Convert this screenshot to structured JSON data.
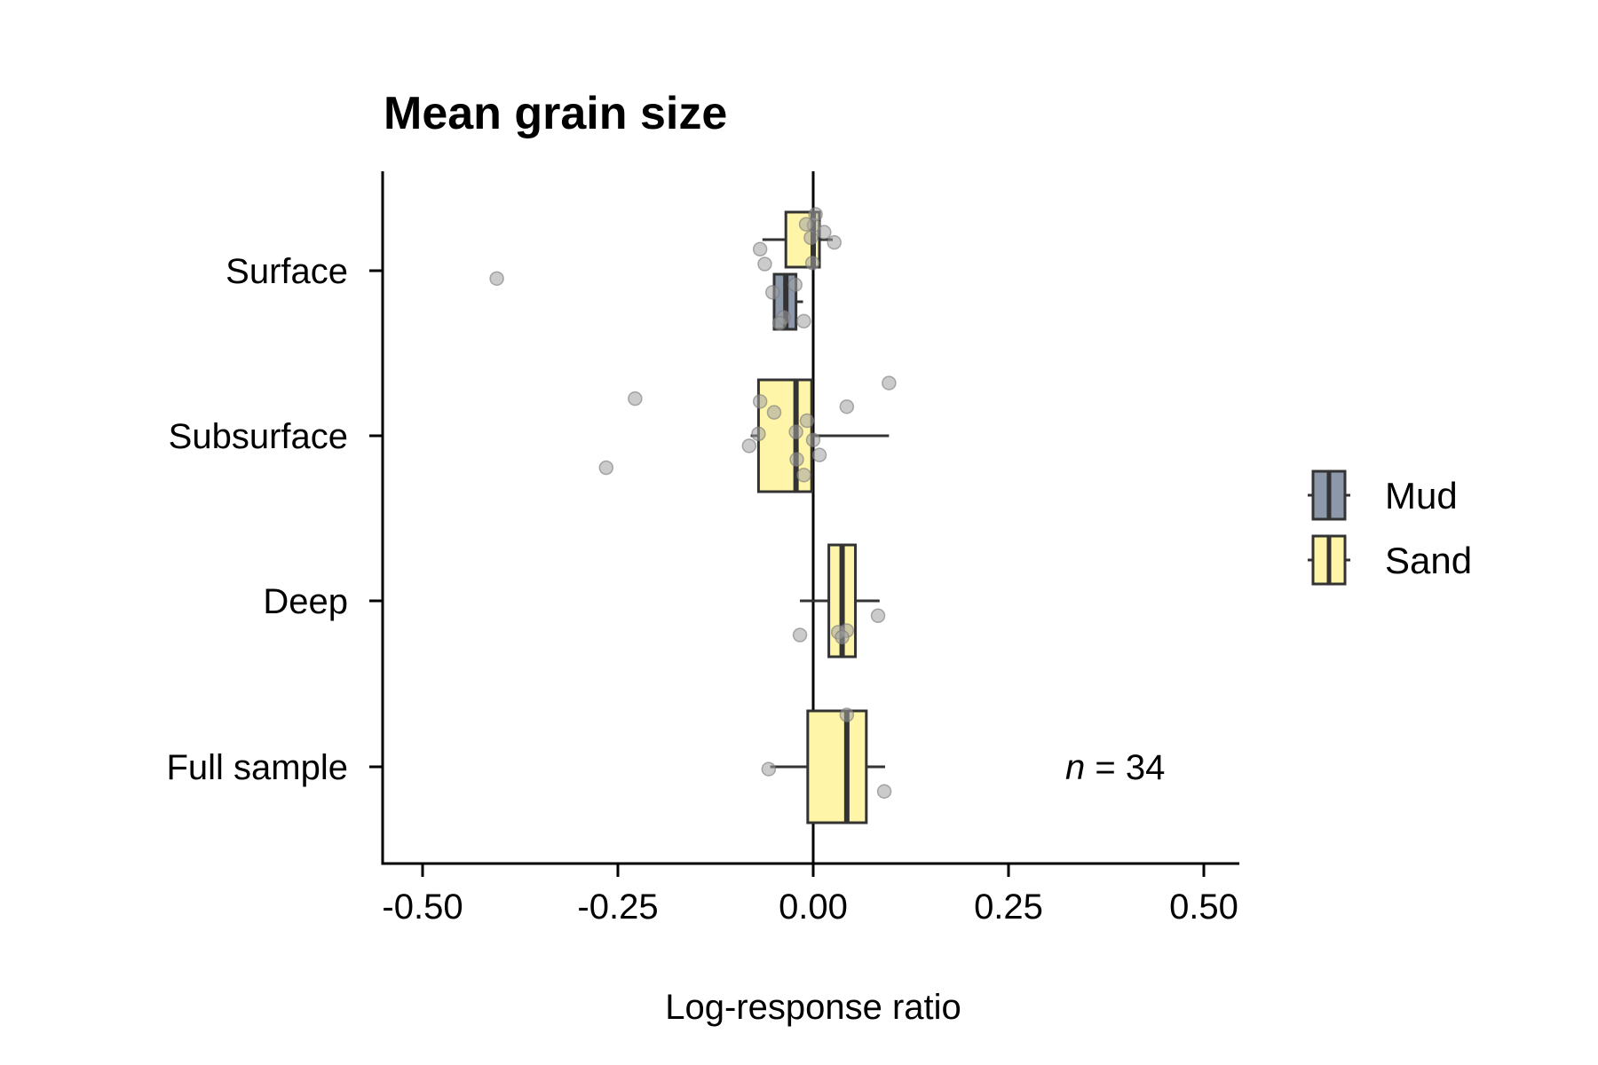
{
  "chart_data": {
    "type": "box",
    "title": "Mean grain size",
    "xlabel": "Log-response ratio",
    "ylabel": "",
    "xlim": [
      -0.55,
      0.55
    ],
    "x_ticks": [
      -0.5,
      -0.25,
      0,
      0.25,
      0.5
    ],
    "x_tick_labels": [
      "-0.50",
      "-0.25",
      "0.00",
      "0.25",
      "0.50"
    ],
    "categories": [
      "Surface",
      "Subsurface",
      "Deep",
      "Full sample"
    ],
    "reference_line_x": 0,
    "grid": false,
    "legend_position": "right",
    "legend": [
      {
        "name": "Mud",
        "color": "#8d98aa"
      },
      {
        "name": "Sand",
        "color": "#fff5a8"
      }
    ],
    "annotation": {
      "italic": "n",
      "rest": " = 34"
    },
    "boxes": [
      {
        "category": "Surface",
        "group": "Sand",
        "whisker_low": -0.065,
        "q1": -0.035,
        "median": 0.0,
        "q3": 0.008,
        "whisker_high": 0.025
      },
      {
        "category": "Surface",
        "group": "Mud",
        "whisker_low": -0.05,
        "q1": -0.05,
        "median": -0.035,
        "q3": -0.022,
        "whisker_high": -0.013
      },
      {
        "category": "Subsurface",
        "group": "Sand",
        "whisker_low": -0.08,
        "q1": -0.07,
        "median": -0.022,
        "q3": -0.002,
        "whisker_high": 0.097
      },
      {
        "category": "Deep",
        "group": "Sand",
        "whisker_low": -0.017,
        "q1": 0.02,
        "median": 0.037,
        "q3": 0.054,
        "whisker_high": 0.085
      },
      {
        "category": "Full sample",
        "group": "Sand",
        "whisker_low": -0.055,
        "q1": -0.007,
        "median": 0.043,
        "q3": 0.068,
        "whisker_high": 0.092
      }
    ],
    "points": [
      {
        "category": "Surface",
        "group": "Sand",
        "x": [
          -0.068,
          -0.062,
          0.027,
          -0.003,
          0.001,
          -0.009,
          0.014,
          -0.001,
          0.003
        ]
      },
      {
        "category": "Surface",
        "group": "Mud",
        "x": [
          -0.405,
          -0.052,
          -0.038,
          -0.043,
          -0.012,
          -0.023
        ]
      },
      {
        "category": "Subsurface",
        "group": "Sand",
        "x": [
          -0.265,
          -0.228,
          -0.082,
          -0.07,
          -0.068,
          -0.022,
          -0.012,
          -0.021,
          0.0,
          0.097,
          0.043,
          0.008,
          -0.008,
          -0.05
        ]
      },
      {
        "category": "Deep",
        "group": "Sand",
        "x": [
          -0.017,
          0.032,
          0.043,
          0.083,
          0.037
        ]
      },
      {
        "category": "Full sample",
        "group": "Sand",
        "x": [
          -0.057,
          0.043,
          0.091
        ]
      }
    ]
  }
}
